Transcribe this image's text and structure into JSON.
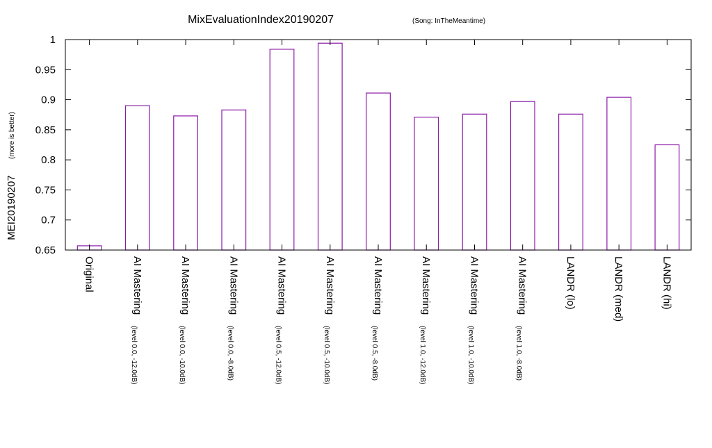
{
  "chart_data": {
    "type": "bar",
    "title": "MixEvaluationIndex20190207",
    "subtitle": "(Song: InTheMeantime)",
    "ylabel": "MEI20190207",
    "ylabel_note": "(more is better)",
    "xlabel": "",
    "ylim": [
      0.65,
      1.0
    ],
    "yticks": [
      "0.65",
      "0.7",
      "0.75",
      "0.8",
      "0.85",
      "0.9",
      "0.95",
      "1"
    ],
    "grid": false,
    "legend": "none",
    "bar_color": "#8b1aa8",
    "categories": [
      {
        "main": "Original",
        "sub": ""
      },
      {
        "main": "AI Mastering",
        "sub": "(level 0.0, -12.0dB)"
      },
      {
        "main": "AI Mastering",
        "sub": "(level 0.0, -10.0dB)"
      },
      {
        "main": "AI Mastering",
        "sub": "(level 0.0, -8.0dB)"
      },
      {
        "main": "AI Mastering",
        "sub": "(level 0.5, -12.0dB)"
      },
      {
        "main": "AI Mastering",
        "sub": "(level 0.5, -10.0dB)"
      },
      {
        "main": "AI Mastering",
        "sub": "(level 0.5, -8.0dB)"
      },
      {
        "main": "AI Mastering",
        "sub": "(level 1.0, -12.0dB)"
      },
      {
        "main": "AI Mastering",
        "sub": "(level 1.0, -10.0dB)"
      },
      {
        "main": "AI Mastering",
        "sub": "(level 1.0, -8.0dB)"
      },
      {
        "main": "LANDR (lo)",
        "sub": ""
      },
      {
        "main": "LANDR (med)",
        "sub": ""
      },
      {
        "main": "LANDR (hi)",
        "sub": ""
      }
    ],
    "values": [
      0.657,
      0.89,
      0.873,
      0.883,
      0.984,
      0.994,
      0.911,
      0.871,
      0.876,
      0.897,
      0.876,
      0.904,
      0.825
    ]
  }
}
